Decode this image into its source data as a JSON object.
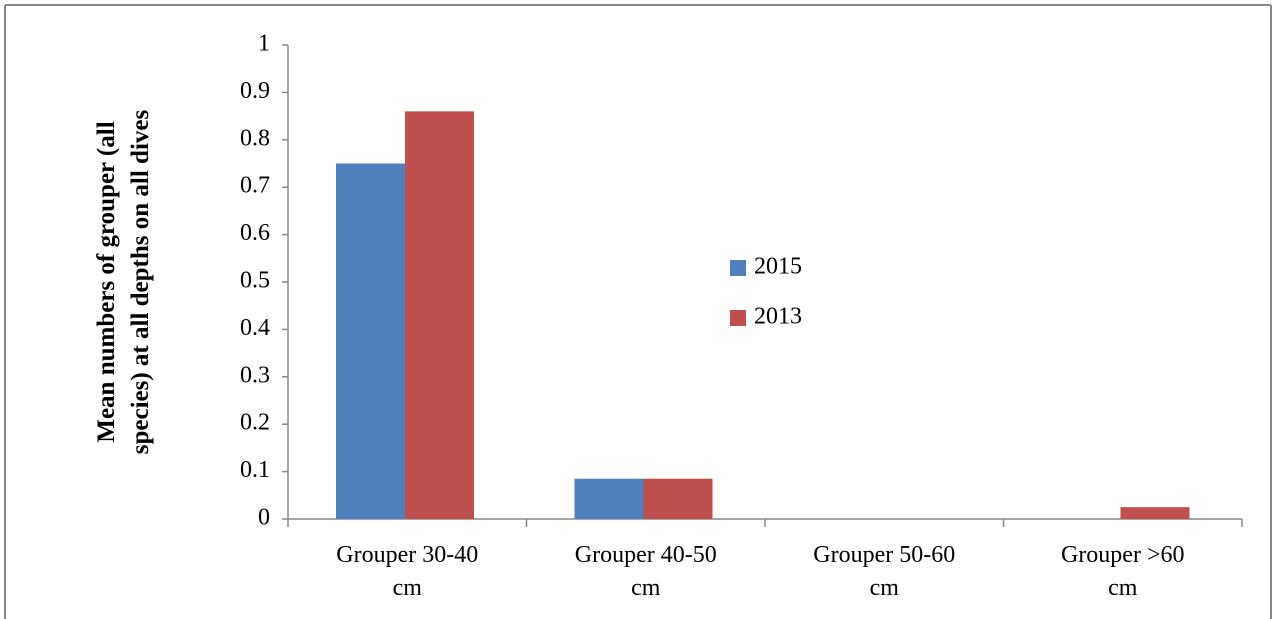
{
  "chart_data": {
    "type": "bar",
    "y_label": "Mean numbers of grouper (all species) at all depths on all dives",
    "categories": [
      "Grouper 30-40 cm",
      "Grouper 40-50 cm",
      "Grouper 50-60 cm",
      "Grouper >60 cm"
    ],
    "series": [
      {
        "name": "2015",
        "color": "#4f81bd",
        "values": [
          0.75,
          0.085,
          0,
          0
        ]
      },
      {
        "name": "2013",
        "color": "#c0504d",
        "values": [
          0.86,
          0.085,
          0,
          0.025
        ]
      }
    ],
    "ylim": [
      0,
      1
    ],
    "yticks": [
      0,
      0.1,
      0.2,
      0.3,
      0.4,
      0.5,
      0.6,
      0.7,
      0.8,
      0.9,
      1
    ],
    "grid": false,
    "legend": "center"
  }
}
